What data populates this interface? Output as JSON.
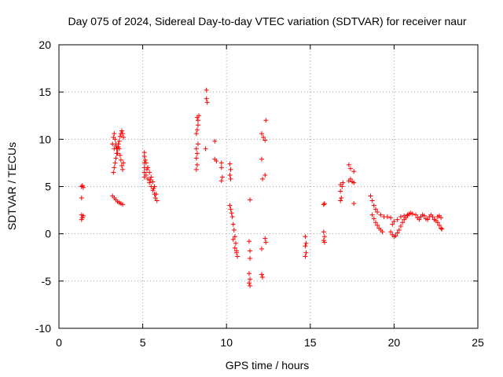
{
  "chart_data": {
    "type": "scatter",
    "title": "Day 075 of 2024, Sidereal Day-to-day VTEC variation (SDTVAR) for receiver naur",
    "xlabel": "GPS time / hours",
    "ylabel": "SDTVAR / TECUs",
    "xlim": [
      0,
      25
    ],
    "ylim": [
      -10,
      20
    ],
    "xticks": [
      0,
      5,
      10,
      15,
      20,
      25
    ],
    "yticks": [
      -10,
      -5,
      0,
      5,
      10,
      15,
      20
    ],
    "grid": true,
    "marker": "+",
    "color": "#ff0000",
    "series": [
      {
        "name": "SDTVAR",
        "points": [
          [
            1.35,
            5.0
          ],
          [
            1.4,
            5.1
          ],
          [
            1.45,
            4.9
          ],
          [
            1.35,
            3.8
          ],
          [
            1.35,
            2.0
          ],
          [
            1.4,
            1.7
          ],
          [
            1.45,
            1.9
          ],
          [
            1.35,
            1.5
          ],
          [
            3.2,
            4.0
          ],
          [
            3.3,
            3.8
          ],
          [
            3.4,
            3.6
          ],
          [
            3.5,
            3.4
          ],
          [
            3.6,
            3.3
          ],
          [
            3.7,
            3.2
          ],
          [
            3.8,
            3.1
          ],
          [
            3.2,
            9.5
          ],
          [
            3.25,
            10.2
          ],
          [
            3.3,
            10.6
          ],
          [
            3.35,
            10.0
          ],
          [
            3.4,
            9.5
          ],
          [
            3.45,
            9.0
          ],
          [
            3.5,
            8.5
          ],
          [
            3.55,
            9.2
          ],
          [
            3.6,
            9.8
          ],
          [
            3.65,
            10.3
          ],
          [
            3.7,
            10.6
          ],
          [
            3.75,
            10.9
          ],
          [
            3.8,
            10.6
          ],
          [
            3.85,
            10.2
          ],
          [
            3.25,
            6.5
          ],
          [
            3.3,
            7.0
          ],
          [
            3.35,
            7.5
          ],
          [
            3.4,
            8.0
          ],
          [
            3.45,
            8.5
          ],
          [
            3.5,
            9.0
          ],
          [
            3.55,
            9.5
          ],
          [
            3.6,
            9.0
          ],
          [
            3.65,
            8.3
          ],
          [
            3.7,
            7.8
          ],
          [
            3.75,
            7.2
          ],
          [
            3.8,
            6.8
          ],
          [
            3.85,
            7.5
          ],
          [
            3.3,
            9.0
          ],
          [
            3.4,
            9.3
          ],
          [
            5.1,
            8.6
          ],
          [
            5.1,
            8.2
          ],
          [
            5.1,
            7.5
          ],
          [
            5.1,
            7.0
          ],
          [
            5.1,
            6.5
          ],
          [
            5.1,
            6.0
          ],
          [
            5.2,
            7.5
          ],
          [
            5.3,
            7.0
          ],
          [
            5.4,
            6.5
          ],
          [
            5.5,
            6.0
          ],
          [
            5.6,
            5.5
          ],
          [
            5.7,
            5.0
          ],
          [
            5.8,
            4.2
          ],
          [
            5.85,
            3.5
          ],
          [
            5.2,
            6.2
          ],
          [
            5.3,
            5.8
          ],
          [
            5.4,
            5.4
          ],
          [
            5.5,
            5.0
          ],
          [
            5.6,
            4.6
          ],
          [
            5.7,
            4.2
          ],
          [
            5.75,
            3.8
          ],
          [
            5.15,
            7.8
          ],
          [
            5.25,
            6.8
          ],
          [
            5.45,
            5.7
          ],
          [
            5.65,
            4.8
          ],
          [
            8.25,
            12.3
          ],
          [
            8.3,
            12.0
          ],
          [
            8.35,
            12.5
          ],
          [
            8.3,
            11.5
          ],
          [
            8.25,
            11.0
          ],
          [
            8.2,
            10.6
          ],
          [
            8.2,
            9.0
          ],
          [
            8.25,
            8.5
          ],
          [
            8.2,
            8.0
          ],
          [
            8.3,
            9.5
          ],
          [
            8.25,
            7.3
          ],
          [
            8.2,
            6.8
          ],
          [
            8.8,
            15.2
          ],
          [
            8.8,
            14.3
          ],
          [
            8.85,
            13.9
          ],
          [
            8.75,
            9.0
          ],
          [
            9.3,
            9.8
          ],
          [
            9.3,
            7.9
          ],
          [
            9.4,
            7.7
          ],
          [
            9.7,
            7.5
          ],
          [
            9.7,
            7.0
          ],
          [
            9.75,
            6.0
          ],
          [
            9.7,
            5.6
          ],
          [
            10.2,
            7.4
          ],
          [
            10.25,
            6.8
          ],
          [
            10.2,
            6.2
          ],
          [
            10.25,
            5.8
          ],
          [
            10.2,
            3.0
          ],
          [
            10.25,
            2.6
          ],
          [
            10.3,
            2.2
          ],
          [
            10.35,
            1.8
          ],
          [
            10.4,
            1.0
          ],
          [
            10.45,
            0.4
          ],
          [
            10.5,
            -0.3
          ],
          [
            10.55,
            -1.0
          ],
          [
            10.6,
            -1.8
          ],
          [
            10.65,
            -2.4
          ],
          [
            10.4,
            -0.6
          ],
          [
            10.5,
            -1.5
          ],
          [
            10.6,
            -2.0
          ],
          [
            11.4,
            3.6
          ],
          [
            11.35,
            -0.8
          ],
          [
            11.4,
            -1.8
          ],
          [
            11.4,
            -2.6
          ],
          [
            11.35,
            -4.2
          ],
          [
            11.4,
            -4.8
          ],
          [
            11.35,
            -5.2
          ],
          [
            11.4,
            -5.5
          ],
          [
            12.1,
            10.6
          ],
          [
            12.2,
            10.2
          ],
          [
            12.35,
            12.0
          ],
          [
            12.3,
            9.9
          ],
          [
            12.1,
            7.9
          ],
          [
            12.15,
            5.8
          ],
          [
            12.3,
            6.2
          ],
          [
            12.3,
            -0.5
          ],
          [
            12.35,
            -0.9
          ],
          [
            12.1,
            -1.6
          ],
          [
            12.1,
            -4.3
          ],
          [
            12.15,
            -4.6
          ],
          [
            14.7,
            -0.3
          ],
          [
            14.75,
            -1.0
          ],
          [
            14.7,
            -1.3
          ],
          [
            14.75,
            -2.0
          ],
          [
            14.7,
            -2.4
          ],
          [
            15.8,
            3.1
          ],
          [
            15.85,
            3.2
          ],
          [
            15.8,
            0.2
          ],
          [
            15.85,
            -0.3
          ],
          [
            15.8,
            -0.7
          ],
          [
            15.85,
            -0.9
          ],
          [
            16.8,
            3.5
          ],
          [
            16.85,
            3.8
          ],
          [
            16.8,
            4.5
          ],
          [
            16.9,
            5.0
          ],
          [
            16.95,
            5.4
          ],
          [
            16.8,
            5.2
          ],
          [
            17.3,
            7.3
          ],
          [
            17.4,
            6.9
          ],
          [
            17.6,
            6.6
          ],
          [
            17.4,
            5.8
          ],
          [
            17.5,
            5.5
          ],
          [
            17.6,
            5.4
          ],
          [
            17.3,
            5.6
          ],
          [
            17.6,
            3.2
          ],
          [
            18.6,
            4.0
          ],
          [
            18.7,
            3.5
          ],
          [
            18.8,
            3.0
          ],
          [
            18.9,
            2.6
          ],
          [
            19.0,
            2.3
          ],
          [
            19.2,
            2.0
          ],
          [
            19.4,
            1.8
          ],
          [
            19.6,
            1.8
          ],
          [
            19.8,
            1.7
          ],
          [
            18.7,
            2.0
          ],
          [
            18.8,
            1.6
          ],
          [
            18.9,
            1.2
          ],
          [
            19.0,
            0.9
          ],
          [
            19.1,
            0.6
          ],
          [
            19.2,
            0.4
          ],
          [
            19.3,
            0.2
          ],
          [
            19.8,
            0.2
          ],
          [
            19.9,
            -0.1
          ],
          [
            20.0,
            -0.3
          ],
          [
            20.1,
            -0.2
          ],
          [
            20.2,
            0.1
          ],
          [
            20.3,
            0.4
          ],
          [
            20.4,
            0.8
          ],
          [
            20.5,
            1.2
          ],
          [
            20.6,
            1.5
          ],
          [
            20.7,
            1.7
          ],
          [
            20.8,
            1.9
          ],
          [
            20.9,
            2.1
          ],
          [
            21.0,
            2.2
          ],
          [
            21.1,
            2.1
          ],
          [
            19.9,
            1.0
          ],
          [
            20.0,
            1.3
          ],
          [
            20.2,
            1.5
          ],
          [
            20.4,
            1.8
          ],
          [
            20.6,
            1.9
          ],
          [
            20.8,
            2.0
          ],
          [
            21.3,
            2.0
          ],
          [
            21.4,
            1.7
          ],
          [
            21.5,
            1.5
          ],
          [
            21.6,
            1.8
          ],
          [
            21.7,
            2.0
          ],
          [
            21.8,
            1.9
          ],
          [
            21.9,
            1.6
          ],
          [
            22.0,
            1.5
          ],
          [
            22.1,
            1.8
          ],
          [
            22.2,
            2.0
          ],
          [
            22.3,
            1.8
          ],
          [
            22.4,
            1.5
          ],
          [
            22.5,
            1.4
          ],
          [
            22.6,
            1.2
          ],
          [
            22.7,
            0.9
          ],
          [
            22.8,
            0.6
          ],
          [
            22.85,
            0.5
          ],
          [
            22.6,
            1.8
          ],
          [
            22.7,
            1.9
          ],
          [
            22.8,
            1.7
          ]
        ]
      }
    ]
  }
}
